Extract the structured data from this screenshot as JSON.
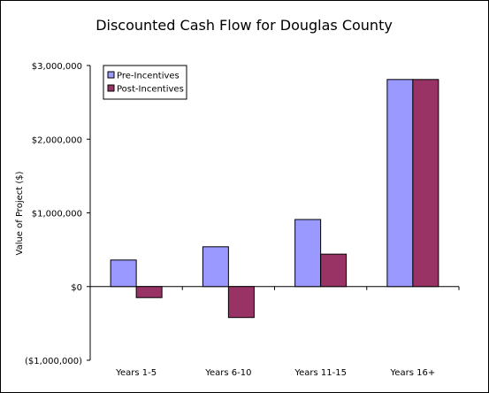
{
  "chart_data": {
    "type": "bar",
    "title": "Discounted Cash Flow for Douglas County",
    "xlabel": "",
    "ylabel": "Value of Project ($)",
    "categories": [
      "Years 1-5",
      "Years 6-10",
      "Years 11-15",
      "Years 16+"
    ],
    "series": [
      {
        "name": "Pre-Incentives",
        "color": "#9999ff",
        "values": [
          360000,
          540000,
          910000,
          2810000
        ]
      },
      {
        "name": "Post-Incentives",
        "color": "#993366",
        "values": [
          -150000,
          -420000,
          440000,
          2810000
        ]
      }
    ],
    "ylim": [
      -1000000,
      3000000
    ],
    "yticks": [
      {
        "value": 3000000,
        "label": "$3,000,000",
        "color": "#000000"
      },
      {
        "value": 2000000,
        "label": "$2,000,000",
        "color": "#000000"
      },
      {
        "value": 1000000,
        "label": "$1,000,000",
        "color": "#000000"
      },
      {
        "value": 0,
        "label": "$0",
        "color": "#000000"
      },
      {
        "value": -1000000,
        "label": "($1,000,000)",
        "color": "#ff0000"
      }
    ],
    "grid": false,
    "legend_position": "top-left"
  }
}
